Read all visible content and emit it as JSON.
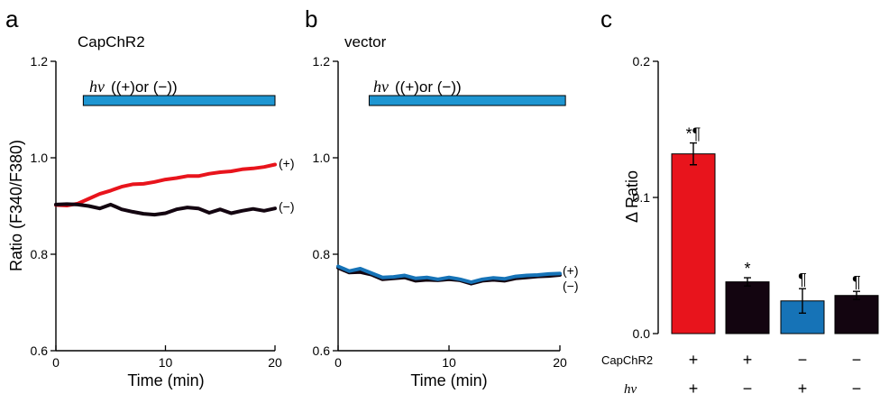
{
  "figure": {
    "panel_labels": [
      "a",
      "b",
      "c"
    ]
  },
  "colors": {
    "red": "#e8141c",
    "black": "#130510",
    "blue": "#1673b7",
    "bar_light": "#1e96d2",
    "axis": "#000000"
  },
  "chart_data": [
    {
      "type": "line",
      "panel": "a",
      "title": "CapChR2",
      "xlabel": "Time (min)",
      "ylabel": "Ratio (F340/F380)",
      "xlim": [
        0,
        20
      ],
      "ylim": [
        0.6,
        1.2
      ],
      "xticks": [
        0,
        10,
        20
      ],
      "xtick_labels": [
        "0",
        "10",
        "20"
      ],
      "yticks": [
        0.6,
        0.8,
        1.0,
        1.2
      ],
      "ytick_labels": [
        "0.6",
        "0.8",
        "1.0",
        "1.2"
      ],
      "stimulus": {
        "label_symbol": "hν",
        "label_text": "((+)or (−))",
        "start": 2.5,
        "end": 20
      },
      "series": [
        {
          "name": "(+)",
          "color": "red",
          "x": [
            0,
            1,
            2,
            3,
            4,
            5,
            6,
            7,
            8,
            9,
            10,
            11,
            12,
            13,
            14,
            15,
            16,
            17,
            18,
            19,
            20
          ],
          "y": [
            0.902,
            0.901,
            0.905,
            0.915,
            0.925,
            0.932,
            0.94,
            0.945,
            0.946,
            0.95,
            0.955,
            0.958,
            0.962,
            0.962,
            0.967,
            0.97,
            0.972,
            0.976,
            0.978,
            0.981,
            0.986
          ]
        },
        {
          "name": "(−)",
          "color": "black",
          "x": [
            0,
            1,
            2,
            3,
            4,
            5,
            6,
            7,
            8,
            9,
            10,
            11,
            12,
            13,
            14,
            15,
            16,
            17,
            18,
            19,
            20
          ],
          "y": [
            0.903,
            0.904,
            0.903,
            0.9,
            0.895,
            0.903,
            0.893,
            0.888,
            0.884,
            0.882,
            0.885,
            0.893,
            0.897,
            0.895,
            0.886,
            0.893,
            0.885,
            0.89,
            0.894,
            0.89,
            0.895
          ]
        }
      ]
    },
    {
      "type": "line",
      "panel": "b",
      "title": "vector",
      "xlabel": "Time (min)",
      "ylabel": "",
      "xlim": [
        0,
        20
      ],
      "ylim": [
        0.6,
        1.2
      ],
      "xticks": [
        0,
        10,
        20
      ],
      "xtick_labels": [
        "0",
        "10",
        "20"
      ],
      "yticks": [
        0.6,
        0.8,
        1.0,
        1.2
      ],
      "ytick_labels": [
        "0.6",
        "0.8",
        "1.0",
        "1.2"
      ],
      "stimulus": {
        "label_symbol": "hν",
        "label_text": "((+)or (−))",
        "start": 2.8,
        "end": 20.5
      },
      "series": [
        {
          "name": "(−)",
          "color": "black",
          "x": [
            0,
            1,
            2,
            3,
            4,
            5,
            6,
            7,
            8,
            9,
            10,
            11,
            12,
            13,
            14,
            15,
            16,
            17,
            18,
            19,
            20
          ],
          "y": [
            0.772,
            0.762,
            0.763,
            0.758,
            0.748,
            0.75,
            0.752,
            0.745,
            0.747,
            0.746,
            0.748,
            0.746,
            0.739,
            0.745,
            0.747,
            0.745,
            0.75,
            0.752,
            0.754,
            0.755,
            0.757
          ]
        },
        {
          "name": "(+)",
          "color": "blue",
          "x": [
            0,
            1,
            2,
            3,
            4,
            5,
            6,
            7,
            8,
            9,
            10,
            11,
            12,
            13,
            14,
            15,
            16,
            17,
            18,
            19,
            20
          ],
          "y": [
            0.775,
            0.765,
            0.77,
            0.761,
            0.752,
            0.753,
            0.756,
            0.75,
            0.752,
            0.748,
            0.752,
            0.748,
            0.742,
            0.748,
            0.751,
            0.749,
            0.754,
            0.756,
            0.757,
            0.759,
            0.76
          ]
        }
      ],
      "end_labels": [
        "(+)",
        "(−)"
      ]
    },
    {
      "type": "bar",
      "panel": "c",
      "ylabel": "Δ Ratio",
      "ylim": [
        0,
        0.2
      ],
      "yticks": [
        0,
        0.1,
        0.2
      ],
      "ytick_labels": [
        "0.0",
        "0.1",
        "0.2"
      ],
      "categories": [
        "CapChR2 + / hν +",
        "CapChR2 + / hν −",
        "CapChR2 − / hν +",
        "CapChR2 − / hν −"
      ],
      "values": [
        0.132,
        0.038,
        0.024,
        0.028
      ],
      "errors": [
        0.008,
        0.003,
        0.009,
        0.003
      ],
      "colors": [
        "red",
        "black",
        "blue",
        "black"
      ],
      "annotations": [
        "*¶",
        "*",
        "¶",
        "¶"
      ],
      "condition_rows": [
        {
          "label": "CapChR2",
          "italic": false,
          "signs": [
            "+",
            "+",
            "−",
            "−"
          ]
        },
        {
          "label": "hν",
          "italic": true,
          "signs": [
            "+",
            "−",
            "+",
            "−"
          ]
        }
      ]
    }
  ]
}
